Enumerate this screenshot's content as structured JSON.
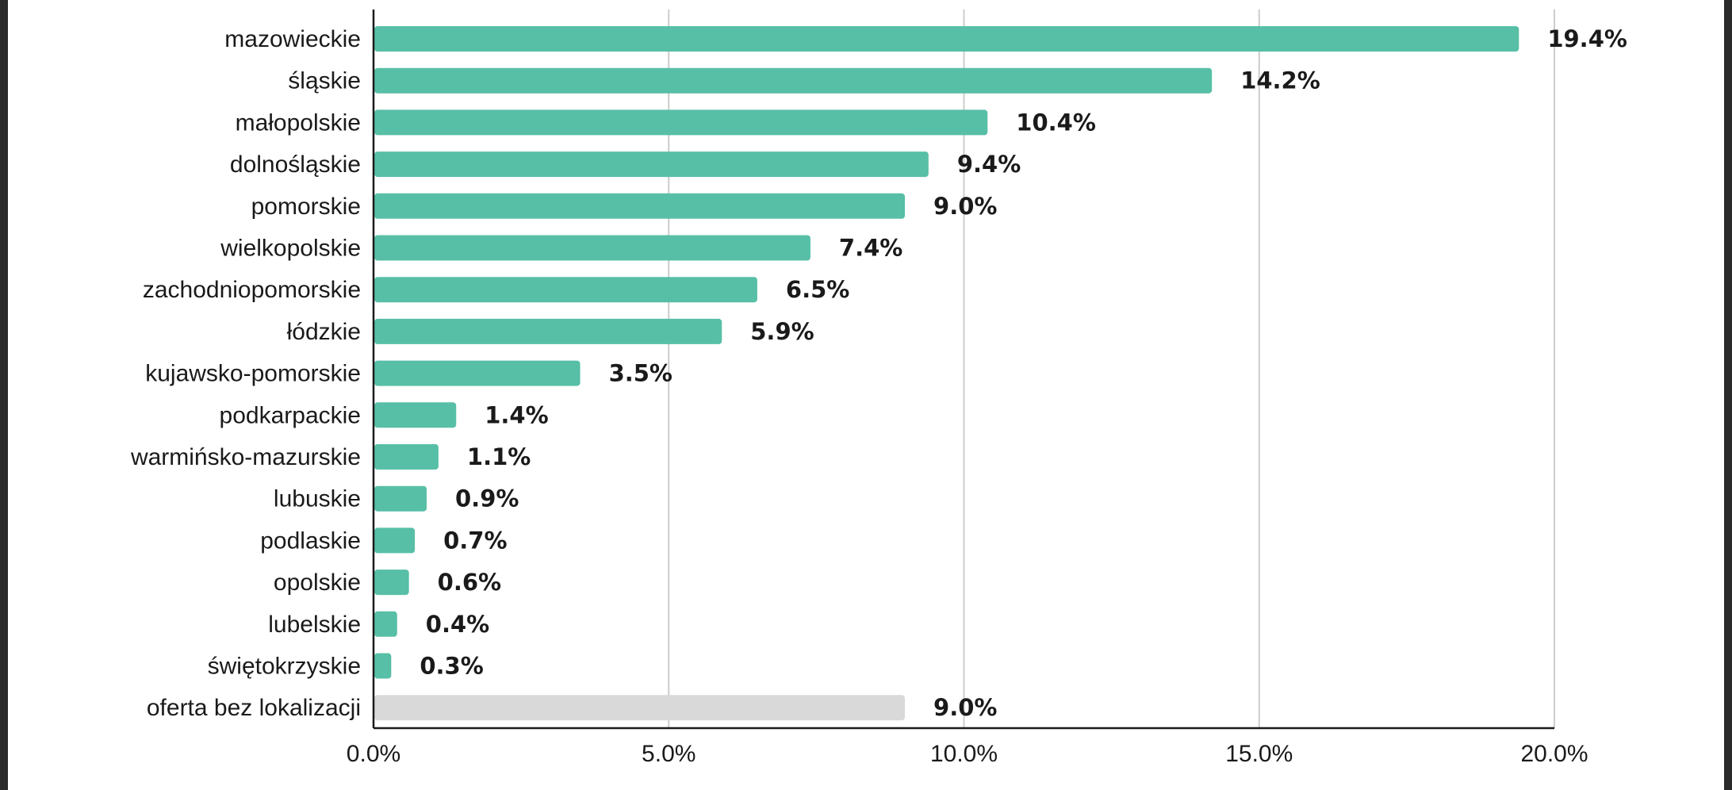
{
  "chart_data": {
    "type": "bar",
    "orientation": "horizontal",
    "title": "",
    "xlabel": "",
    "ylabel": "",
    "xlim": [
      0,
      20
    ],
    "grid": true,
    "legend": "none",
    "ticks": [
      "0.0%",
      "5.0%",
      "10.0%",
      "15.0%",
      "20.0%"
    ],
    "tick_values": [
      0,
      5,
      10,
      15,
      20
    ],
    "categories": [
      "mazowieckie",
      "śląskie",
      "małopolskie",
      "dolnośląskie",
      "pomorskie",
      "wielkopolskie",
      "zachodniopomorskie",
      "łódzkie",
      "kujawsko-pomorskie",
      "podkarpackie",
      "warmińsko-mazurskie",
      "lubuskie",
      "podlaskie",
      "opolskie",
      "lubelskie",
      "świętokrzyskie",
      "oferta bez lokalizacji"
    ],
    "values": [
      19.4,
      14.2,
      10.4,
      9.4,
      9.0,
      7.4,
      6.5,
      5.9,
      3.5,
      1.4,
      1.1,
      0.9,
      0.7,
      0.6,
      0.4,
      0.3,
      9.0
    ],
    "value_labels": [
      "19.4%",
      "14.2%",
      "10.4%",
      "9.4%",
      "9.0%",
      "7.4%",
      "6.5%",
      "5.9%",
      "3.5%",
      "1.4%",
      "1.1%",
      "0.9%",
      "0.7%",
      "0.6%",
      "0.4%",
      "0.3%",
      "9.0%"
    ],
    "bar_colors": [
      "#57bfa6",
      "#57bfa6",
      "#57bfa6",
      "#57bfa6",
      "#57bfa6",
      "#57bfa6",
      "#57bfa6",
      "#57bfa6",
      "#57bfa6",
      "#57bfa6",
      "#57bfa6",
      "#57bfa6",
      "#57bfa6",
      "#57bfa6",
      "#57bfa6",
      "#57bfa6",
      "#d9d9d9"
    ],
    "gridline_color": "#cccccc",
    "axis_color": "#1a1a1a"
  }
}
